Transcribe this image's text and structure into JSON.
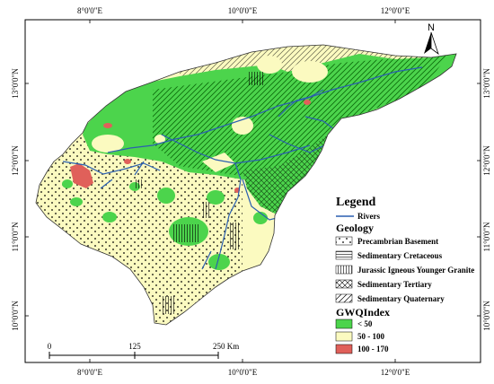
{
  "frame": {
    "top_ticks": [
      "8°0'0\"E",
      "10°0'0\"E",
      "12°0'0\"E"
    ],
    "bottom_ticks": [
      "8°0'0\"E",
      "10°0'0\"E",
      "12°0'0\"E"
    ],
    "left_ticks": [
      "13°0'0\"N",
      "12°0'0\"N",
      "11°0'0\"N",
      "10°0'0\"N"
    ],
    "right_ticks": [
      "13°0'0\"N",
      "12°0'0\"N",
      "11°0'0\"N",
      "10°0'0\"N"
    ]
  },
  "north_arrow": {
    "label": "N"
  },
  "scale_bar": {
    "labels": [
      "0",
      "125",
      "250 Km"
    ]
  },
  "legend": {
    "title": "Legend",
    "rivers_label": "Rivers",
    "geology_title": "Geology",
    "geology_items": [
      "Precambrian Basement",
      "Sedimentary Cretaceous",
      "Jurassic Igneous Younger Granite",
      "Sedimentary Tertiary",
      "Sedimentary Quaternary"
    ],
    "gwq_title": "GWQIndex",
    "gwq_items": [
      "< 50",
      "50 - 100",
      "100 - 170"
    ]
  },
  "colors": {
    "low": "#4cd44c",
    "mid": "#fbfac0",
    "high": "#e0605a",
    "river": "#2a5fb0",
    "boundary": "#333333"
  }
}
